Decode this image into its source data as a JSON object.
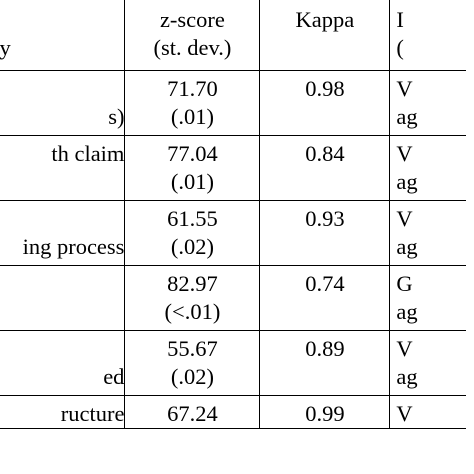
{
  "table": {
    "headers": {
      "category": "ry",
      "zscore": [
        "z-score",
        "(st. dev.)"
      ],
      "kappa": "Kappa",
      "interp": [
        "I",
        "("
      ]
    },
    "rows": [
      {
        "category": [
          "s)"
        ],
        "zscore": [
          "71.70",
          "(.01)"
        ],
        "kappa": "0.98",
        "interp": [
          "V",
          "ag"
        ]
      },
      {
        "category": [
          "th claim"
        ],
        "zscore": [
          "77.04",
          "(.01)"
        ],
        "kappa": "0.84",
        "interp": [
          "V",
          "ag"
        ]
      },
      {
        "category": [
          "ing process"
        ],
        "zscore": [
          "61.55",
          "(.02)"
        ],
        "kappa": "0.93",
        "interp": [
          "V",
          "ag"
        ]
      },
      {
        "category": [
          ""
        ],
        "zscore": [
          "82.97",
          "(<.01)"
        ],
        "kappa": "0.74",
        "interp": [
          "G",
          "ag"
        ]
      },
      {
        "category": [
          "ed"
        ],
        "zscore": [
          "55.67",
          "(.02)"
        ],
        "kappa": "0.89",
        "interp": [
          "V",
          "ag"
        ]
      },
      {
        "category": [
          "ructure"
        ],
        "zscore": [
          "67.24"
        ],
        "kappa": "0.99",
        "interp": [
          "V"
        ]
      }
    ]
  }
}
